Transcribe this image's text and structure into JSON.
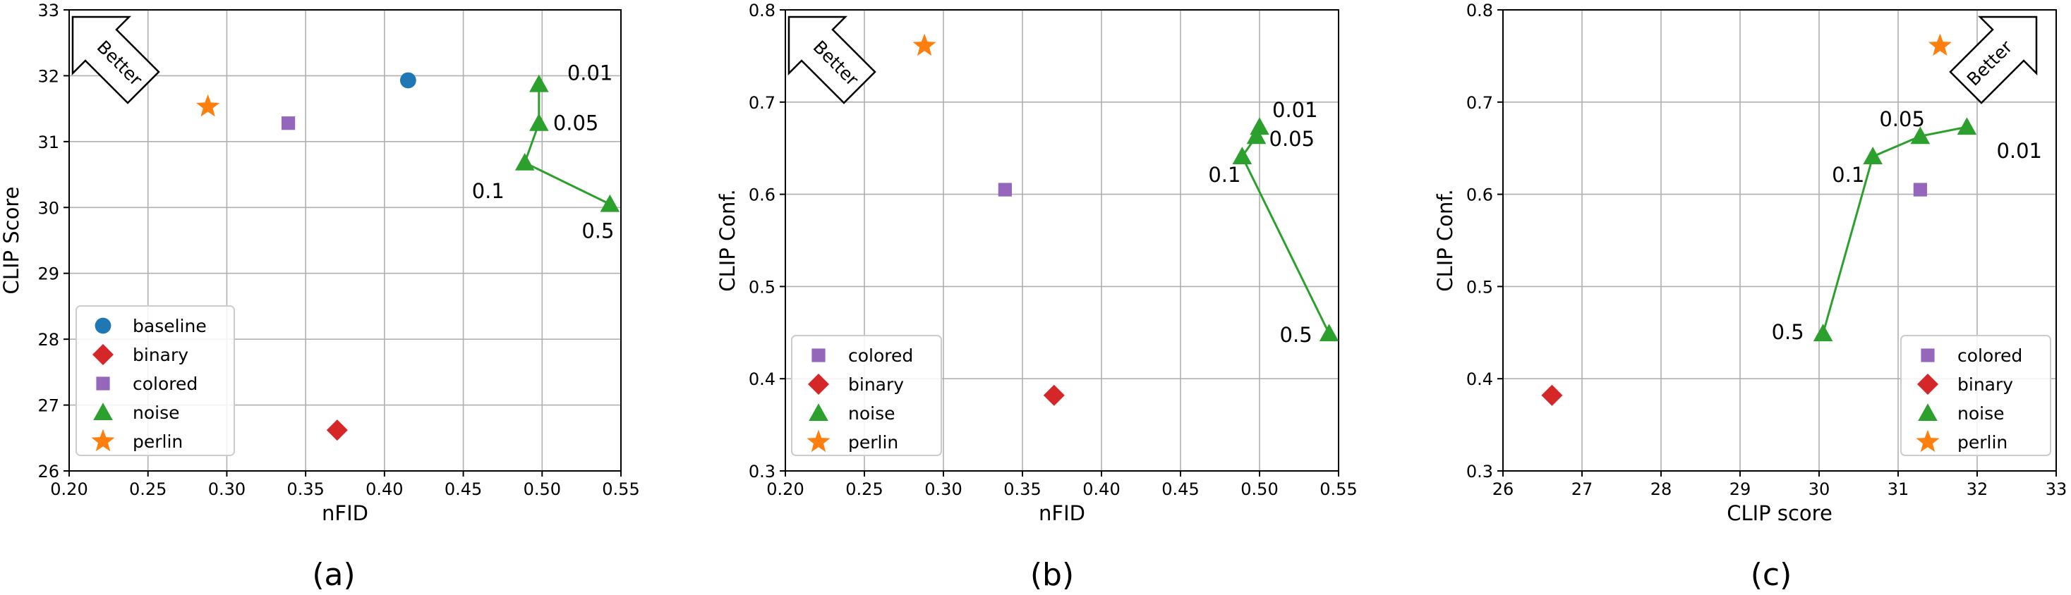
{
  "chart_data": [
    {
      "type": "scatter",
      "panel_label": "(a)",
      "xlabel": "nFID",
      "ylabel": "CLIP Score",
      "xlim": [
        0.2,
        0.55
      ],
      "ylim": [
        26,
        33
      ],
      "xticks": [
        "0.20",
        "0.25",
        "0.30",
        "0.35",
        "0.40",
        "0.45",
        "0.50",
        "0.55"
      ],
      "yticks": [
        "26",
        "27",
        "28",
        "29",
        "30",
        "31",
        "32",
        "33"
      ],
      "grid": true,
      "legend_position": "lower-left",
      "better_arrow": {
        "text": "Better",
        "direction": "upper-left"
      },
      "series": [
        {
          "name": "baseline",
          "marker": "circle",
          "color": "#1f77b4",
          "points": [
            {
              "x": 0.415,
              "y": 31.93
            }
          ]
        },
        {
          "name": "binary",
          "marker": "diamond",
          "color": "#d62728",
          "points": [
            {
              "x": 0.37,
              "y": 26.62
            }
          ]
        },
        {
          "name": "colored",
          "marker": "square",
          "color": "#9467bd",
          "points": [
            {
              "x": 0.339,
              "y": 31.28
            }
          ]
        },
        {
          "name": "noise",
          "marker": "triangle",
          "color": "#2ca02c",
          "connect": true,
          "points": [
            {
              "x": 0.498,
              "y": 31.87,
              "label": "0.01"
            },
            {
              "x": 0.498,
              "y": 31.28,
              "label": "0.05"
            },
            {
              "x": 0.489,
              "y": 30.68,
              "label": "0.1"
            },
            {
              "x": 0.543,
              "y": 30.05,
              "label": "0.5"
            }
          ]
        },
        {
          "name": "perlin",
          "marker": "star",
          "color": "#ff7f0e",
          "points": [
            {
              "x": 0.288,
              "y": 31.53
            }
          ]
        }
      ]
    },
    {
      "type": "scatter",
      "panel_label": "(b)",
      "xlabel": "nFID",
      "ylabel": "CLIP Conf.",
      "xlim": [
        0.2,
        0.55
      ],
      "ylim": [
        0.3,
        0.8
      ],
      "xticks": [
        "0.20",
        "0.25",
        "0.30",
        "0.35",
        "0.40",
        "0.45",
        "0.50",
        "0.55"
      ],
      "yticks": [
        "0.3",
        "0.4",
        "0.5",
        "0.6",
        "0.7",
        "0.8"
      ],
      "grid": true,
      "legend_position": "lower-left",
      "better_arrow": {
        "text": "Better",
        "direction": "upper-left"
      },
      "series": [
        {
          "name": "colored",
          "marker": "square",
          "color": "#9467bd",
          "points": [
            {
              "x": 0.339,
              "y": 0.605
            }
          ]
        },
        {
          "name": "binary",
          "marker": "diamond",
          "color": "#d62728",
          "points": [
            {
              "x": 0.37,
              "y": 0.382
            }
          ]
        },
        {
          "name": "noise",
          "marker": "triangle",
          "color": "#2ca02c",
          "connect": true,
          "points": [
            {
              "x": 0.5,
              "y": 0.673,
              "label": "0.01"
            },
            {
              "x": 0.498,
              "y": 0.663,
              "label": "0.05"
            },
            {
              "x": 0.489,
              "y": 0.641,
              "label": "0.1"
            },
            {
              "x": 0.544,
              "y": 0.449,
              "label": "0.5"
            }
          ]
        },
        {
          "name": "perlin",
          "marker": "star",
          "color": "#ff7f0e",
          "points": [
            {
              "x": 0.288,
              "y": 0.761
            }
          ]
        }
      ]
    },
    {
      "type": "scatter",
      "panel_label": "(c)",
      "xlabel": "CLIP score",
      "ylabel": "CLIP Conf.",
      "xlim": [
        26,
        33
      ],
      "ylim": [
        0.3,
        0.8
      ],
      "xticks": [
        "26",
        "27",
        "28",
        "29",
        "30",
        "31",
        "32",
        "33"
      ],
      "yticks": [
        "0.3",
        "0.4",
        "0.5",
        "0.6",
        "0.7",
        "0.8"
      ],
      "grid": true,
      "legend_position": "lower-right",
      "better_arrow": {
        "text": "Better",
        "direction": "upper-right"
      },
      "series": [
        {
          "name": "colored",
          "marker": "square",
          "color": "#9467bd",
          "points": [
            {
              "x": 31.28,
              "y": 0.605
            }
          ]
        },
        {
          "name": "binary",
          "marker": "diamond",
          "color": "#d62728",
          "points": [
            {
              "x": 26.62,
              "y": 0.382
            }
          ]
        },
        {
          "name": "noise",
          "marker": "triangle",
          "color": "#2ca02c",
          "connect": true,
          "points": [
            {
              "x": 31.87,
              "y": 0.673,
              "label": "0.01"
            },
            {
              "x": 31.28,
              "y": 0.663,
              "label": "0.05"
            },
            {
              "x": 30.68,
              "y": 0.641,
              "label": "0.1"
            },
            {
              "x": 30.05,
              "y": 0.449,
              "label": "0.5"
            }
          ]
        },
        {
          "name": "perlin",
          "marker": "star",
          "color": "#ff7f0e",
          "points": [
            {
              "x": 31.53,
              "y": 0.761
            }
          ]
        }
      ]
    }
  ]
}
